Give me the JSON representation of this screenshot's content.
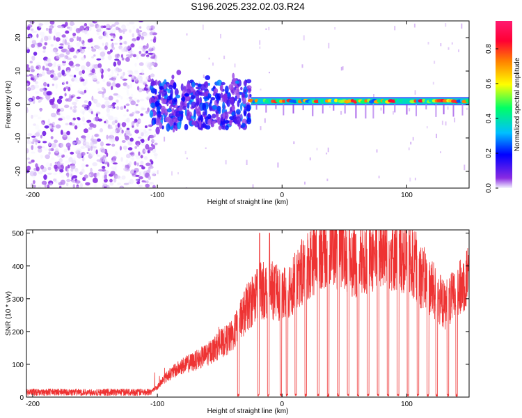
{
  "chart_data": [
    {
      "type": "heatmap",
      "title": "S196.2025.232.02.03.R24",
      "xlabel": "Height of straight line (km)",
      "ylabel": "Frequency (Hz)",
      "xlim": [
        -205,
        150
      ],
      "ylim": [
        -25,
        25
      ],
      "xticks": [
        -200,
        -100,
        0,
        100
      ],
      "yticks": [
        -20,
        -10,
        0,
        10,
        20
      ],
      "colorbar": {
        "label": "Normalized spectral amplitude",
        "range": [
          0,
          0.96
        ],
        "ticks": [
          0.0,
          0.2,
          0.4,
          0.6,
          0.8
        ],
        "colormap": "rainbow",
        "colors": [
          "#f4f4ff",
          "#8a2be2",
          "#0000ff",
          "#00bfff",
          "#00ff66",
          "#ffff00",
          "#ff8000",
          "#ff0033",
          "#ff1a70"
        ]
      },
      "regions": [
        {
          "x_range": [
            -205,
            -105
          ],
          "description": "broadband noise",
          "amplitude": [
            0.0,
            0.15
          ]
        },
        {
          "x_range": [
            -105,
            -25
          ],
          "description": "scattered signal near 0 Hz",
          "amplitude": [
            0.1,
            0.35
          ]
        },
        {
          "x_range": [
            -25,
            150
          ],
          "description": "coherent line at ~1 Hz",
          "freq_hz": 1,
          "amplitude": [
            0.3,
            0.9
          ]
        }
      ]
    },
    {
      "type": "line",
      "title": "",
      "xlabel": "Height of straight line (km)",
      "ylabel": "SNR (10 * v/v)",
      "xlim": [
        -205,
        150
      ],
      "ylim": [
        0,
        510
      ],
      "xticks": [
        -200,
        -100,
        0,
        100
      ],
      "yticks": [
        0,
        100,
        200,
        300,
        400,
        500
      ],
      "series": [
        {
          "name": "SNR",
          "color": "#ee3333",
          "x": [
            -205,
            -180,
            -160,
            -140,
            -120,
            -105,
            -100,
            -95,
            -90,
            -80,
            -70,
            -60,
            -50,
            -40,
            -30,
            -20,
            -10,
            0,
            10,
            20,
            30,
            40,
            50,
            60,
            70,
            80,
            90,
            100,
            110,
            120,
            130,
            140,
            150
          ],
          "values": [
            15,
            15,
            15,
            15,
            15,
            18,
            30,
            55,
            70,
            95,
            110,
            130,
            160,
            185,
            260,
            320,
            330,
            310,
            350,
            400,
            450,
            460,
            440,
            410,
            430,
            450,
            440,
            430,
            380,
            330,
            280,
            310,
            380
          ]
        }
      ],
      "dropouts_x": [
        -35,
        -19,
        -11,
        -1,
        4,
        11,
        19,
        29,
        37,
        45,
        53,
        61,
        69,
        77,
        85,
        93,
        101,
        109,
        117,
        124,
        133,
        140
      ]
    }
  ]
}
